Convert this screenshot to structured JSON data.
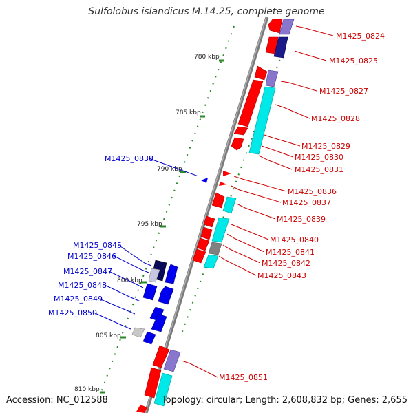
{
  "title": "Sulfolobus islandicus M.14.25, complete genome",
  "footer": {
    "accession": "Accession: NC_012588",
    "topology": "Topology: circular; Length: 2,608,832 bp; Genes: 2,655"
  },
  "colors": {
    "forward_cds": "#ff0000",
    "reverse_cds": "#0000ee",
    "forward_label": "#cc0000",
    "reverse_label": "#0000cc",
    "ring": "#707070",
    "tick_marks": "#2a8a2a",
    "rna": "#00e8e8",
    "pseudo": "#8877cc"
  },
  "scale_ticks": [
    {
      "label": "780 kbp",
      "kb": 780
    },
    {
      "label": "785 kbp",
      "kb": 785
    },
    {
      "label": "790 kbp",
      "kb": 790
    },
    {
      "label": "795 kbp",
      "kb": 795
    },
    {
      "label": "800 kbp",
      "kb": 800
    },
    {
      "label": "805 kbp",
      "kb": 805
    },
    {
      "label": "810 kbp",
      "kb": 810
    }
  ],
  "forward_genes": [
    {
      "name": "M1425_0824"
    },
    {
      "name": "M1425_0825"
    },
    {
      "name": "M1425_0827"
    },
    {
      "name": "M1425_0828"
    },
    {
      "name": "M1425_0829"
    },
    {
      "name": "M1425_0830"
    },
    {
      "name": "M1425_0831"
    },
    {
      "name": "M1425_0836"
    },
    {
      "name": "M1425_0837"
    },
    {
      "name": "M1425_0839"
    },
    {
      "name": "M1425_0840"
    },
    {
      "name": "M1425_0841"
    },
    {
      "name": "M1425_0842"
    },
    {
      "name": "M1425_0843"
    },
    {
      "name": "M1425_0851"
    }
  ],
  "reverse_genes": [
    {
      "name": "M1425_0838"
    },
    {
      "name": "M1425_0845"
    },
    {
      "name": "M1425_0846"
    },
    {
      "name": "M1425_0847"
    },
    {
      "name": "M1425_0848"
    },
    {
      "name": "M1425_0849"
    },
    {
      "name": "M1425_0850"
    }
  ]
}
